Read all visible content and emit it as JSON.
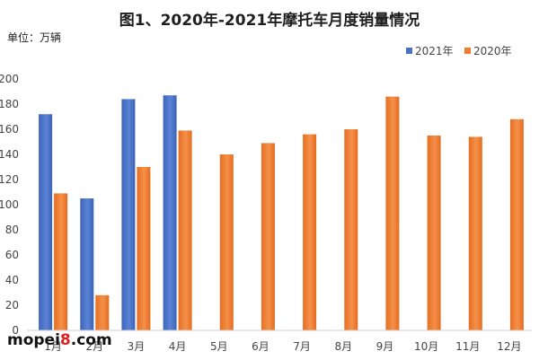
{
  "chart_data": {
    "type": "bar",
    "title": "图1、2020年-2021年摩托车月度销量情况",
    "unit_label": "单位：万辆",
    "categories": [
      "1月",
      "2月",
      "3月",
      "4月",
      "5月",
      "6月",
      "7月",
      "8月",
      "9月",
      "10月",
      "11月",
      "12月"
    ],
    "series": [
      {
        "name": "2021年",
        "color": "#4a72c4",
        "values": [
          172,
          105,
          184,
          187,
          null,
          null,
          null,
          null,
          null,
          null,
          null,
          null
        ]
      },
      {
        "name": "2020年",
        "color": "#ed7d31",
        "values": [
          109,
          28,
          130,
          159,
          140,
          149,
          156,
          160,
          186,
          155,
          154,
          168
        ]
      }
    ],
    "ylim": [
      0,
      200
    ],
    "yticks": [
      0,
      20,
      40,
      60,
      80,
      100,
      120,
      140,
      160,
      180,
      200
    ],
    "legend_position": "top-right",
    "grid": false
  },
  "watermark": {
    "prefix": "mopei",
    "accent": "8",
    "suffix": ".com"
  }
}
